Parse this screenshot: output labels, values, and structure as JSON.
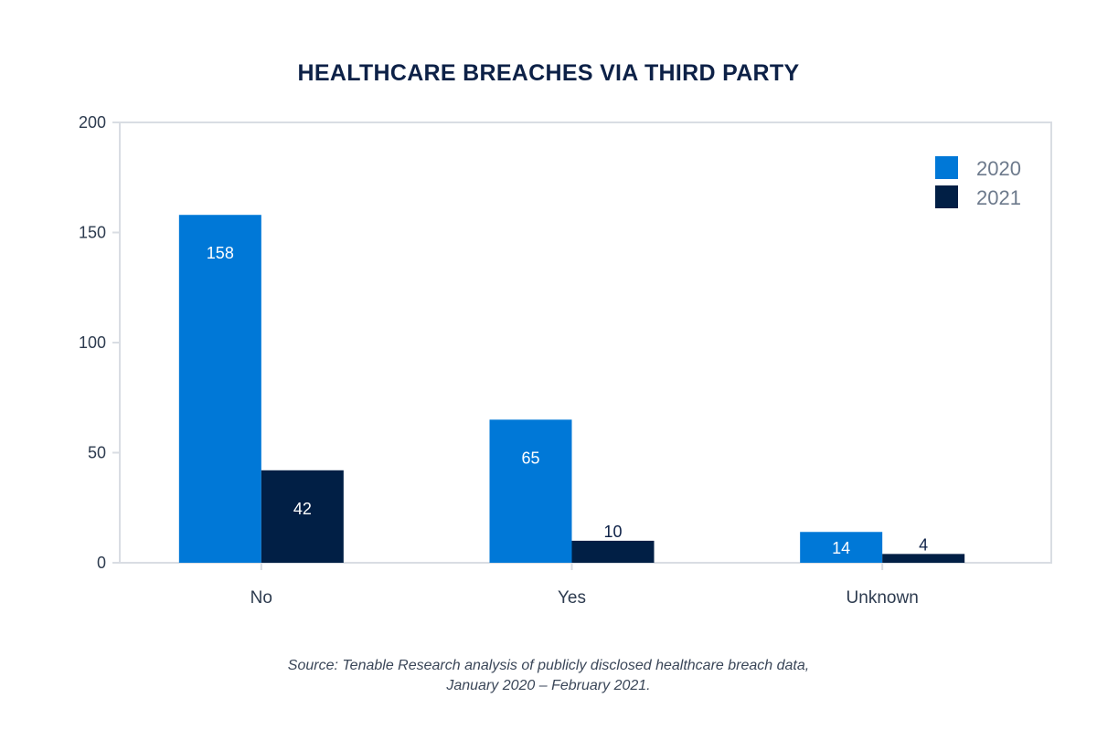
{
  "chart_data": {
    "type": "bar",
    "title": "HEALTHCARE BREACHES VIA THIRD PARTY",
    "categories": [
      "No",
      "Yes",
      "Unknown"
    ],
    "series": [
      {
        "name": "2020",
        "values": [
          158,
          65,
          14
        ],
        "color": "#0078d7",
        "label_color": "#ffffff"
      },
      {
        "name": "2021",
        "values": [
          42,
          10,
          4
        ],
        "color": "#011f45",
        "label_color": "#ffffff"
      }
    ],
    "ylim": [
      0,
      200
    ],
    "yticks": [
      0,
      50,
      100,
      150,
      200
    ],
    "xlabel": "",
    "ylabel": "",
    "grid": false,
    "legend_position": "top-right"
  },
  "source": {
    "line1": "Source: Tenable Research analysis of publicly disclosed healthcare breach data,",
    "line2": "January 2020 – February 2021."
  },
  "colors": {
    "axis": "#d9dde3",
    "title": "#0d2147",
    "outside_label": "#0d2147"
  }
}
